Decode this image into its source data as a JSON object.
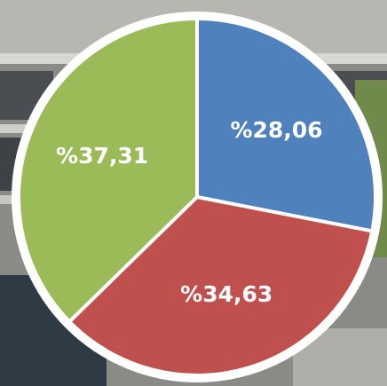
{
  "chart_data": {
    "type": "pie",
    "values": [
      28.06,
      34.63,
      37.31
    ],
    "value_labels": [
      "%28,06",
      "%34,63",
      "%37,31"
    ],
    "colors": [
      "#4f81bd",
      "#c0504d",
      "#9bbb59"
    ]
  }
}
